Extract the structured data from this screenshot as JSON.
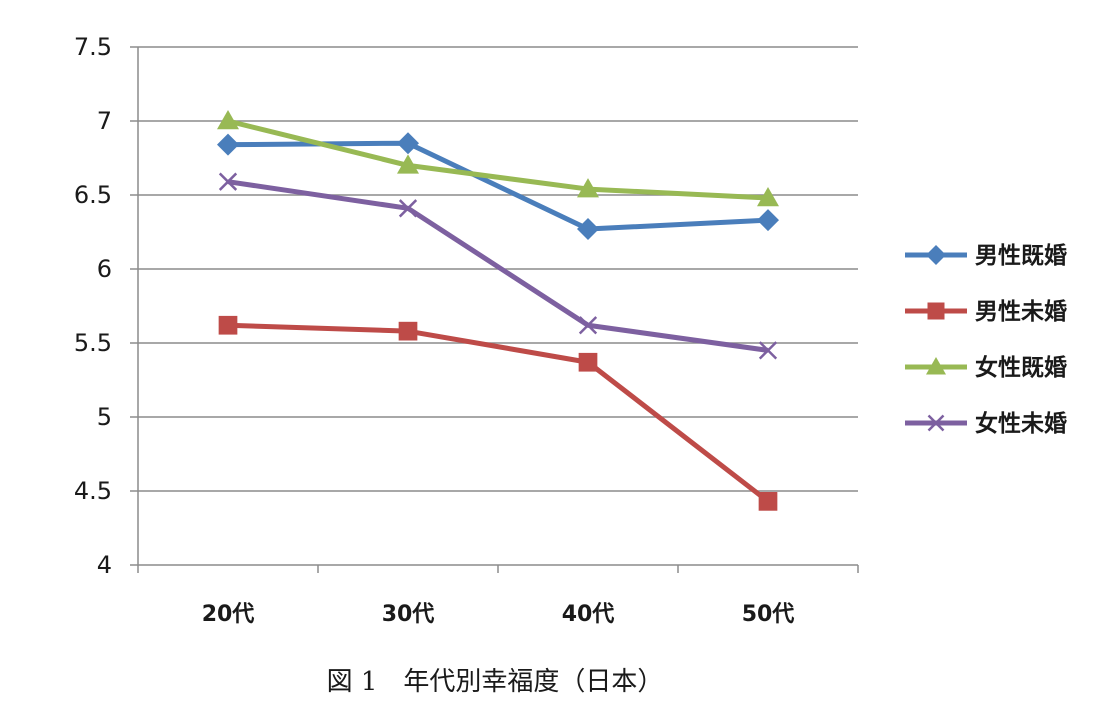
{
  "figure": {
    "caption": "図 1　年代別幸福度（日本）"
  },
  "chart_data": {
    "type": "line",
    "title": "",
    "xlabel": "",
    "ylabel": "",
    "categories": [
      "20代",
      "30代",
      "40代",
      "50代"
    ],
    "ylim": [
      4,
      7.5
    ],
    "yticks": [
      "4",
      "4.5",
      "5",
      "5.5",
      "6",
      "6.5",
      "7",
      "7.5"
    ],
    "ytick_values": [
      4,
      4.5,
      5,
      5.5,
      6,
      6.5,
      7,
      7.5
    ],
    "grid": true,
    "legend_position": "right",
    "series": [
      {
        "name": "男性既婚",
        "values": [
          6.84,
          6.85,
          6.27,
          6.33
        ],
        "color": "#4a7ebb",
        "marker": "diamond"
      },
      {
        "name": "男性未婚",
        "values": [
          5.62,
          5.58,
          5.37,
          4.43
        ],
        "color": "#be4b48",
        "marker": "square"
      },
      {
        "name": "女性既婚",
        "values": [
          7.0,
          6.7,
          6.54,
          6.48
        ],
        "color": "#98b954",
        "marker": "triangle"
      },
      {
        "name": "女性未婚",
        "values": [
          6.59,
          6.41,
          5.62,
          5.45
        ],
        "color": "#7d60a0",
        "marker": "x"
      }
    ]
  }
}
